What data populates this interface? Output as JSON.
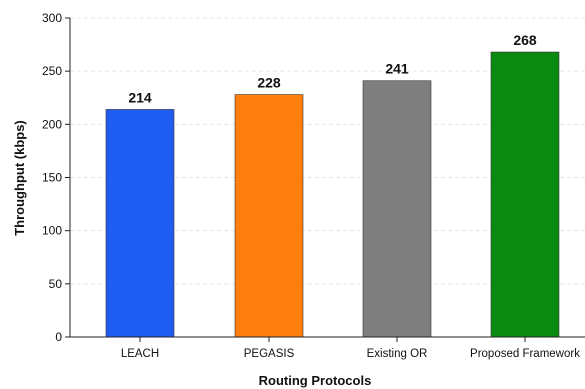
{
  "chart_data": {
    "type": "bar",
    "title": "",
    "xlabel": "Routing Protocols",
    "ylabel": "Throughput (kbps)",
    "categories": [
      "LEACH",
      "PEGASIS",
      "Existing OR",
      "Proposed Framework"
    ],
    "values": [
      214,
      228,
      241,
      268
    ],
    "data_labels": [
      "214",
      "228",
      "241",
      "268"
    ],
    "colors": [
      "#1f5cf2",
      "#ff7f0e",
      "#7f7f7f",
      "#0b8a12"
    ],
    "ylim": [
      0,
      300
    ],
    "yticks": [
      "0",
      "50",
      "100",
      "150",
      "200",
      "250",
      "300"
    ],
    "grid": true,
    "legend": "none"
  }
}
